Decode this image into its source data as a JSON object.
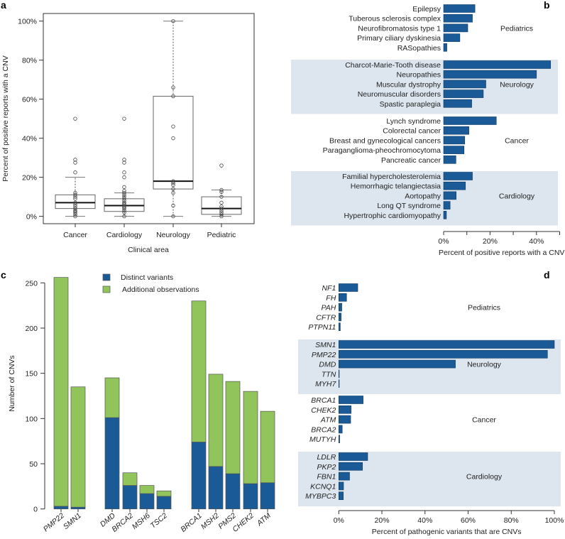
{
  "chart_data": [
    {
      "panel": "a",
      "type": "box",
      "xlabel": "Clinical area",
      "ylabel": "Percent of positive reports with a CNV",
      "ylim": [
        0,
        100
      ],
      "yticks": [
        "0%",
        "20%",
        "40%",
        "60%",
        "80%",
        "100%"
      ],
      "yticks_values": [
        0,
        20,
        40,
        60,
        80,
        100
      ],
      "categories": [
        "Cancer",
        "Cardiology",
        "Neurology",
        "Pediatric"
      ],
      "boxes": [
        {
          "q1": 4,
          "median": 7,
          "q3": 11,
          "whisker_low": 0,
          "whisker_high": 20,
          "points": [
            0,
            1,
            2,
            2.5,
            3,
            4,
            5,
            6,
            7,
            9,
            10,
            11,
            12,
            22.5,
            27.5,
            29,
            50
          ]
        },
        {
          "q1": 2.5,
          "median": 5.5,
          "q3": 9,
          "whisker_low": 0,
          "whisker_high": 12,
          "points": [
            0,
            2,
            3,
            4,
            4.5,
            5,
            6,
            6.5,
            7,
            8,
            9,
            10,
            11,
            12,
            13,
            15,
            20,
            22.5,
            27.5,
            29,
            50
          ]
        },
        {
          "q1": 14,
          "median": 18,
          "q3": 61.5,
          "whisker_low": 0,
          "whisker_high": 100,
          "points": [
            0,
            5.5,
            12,
            14,
            16,
            17,
            18,
            40,
            46,
            61.5,
            66,
            100
          ]
        },
        {
          "q1": 1,
          "median": 4,
          "q3": 10,
          "whisker_low": 0,
          "whisker_high": 13.5,
          "points": [
            0,
            1,
            2,
            3,
            4,
            5,
            7,
            10,
            12.5,
            13.5,
            26
          ]
        }
      ]
    },
    {
      "panel": "b",
      "type": "bar",
      "orientation": "horizontal",
      "xlabel": "Percent of positive reports with a CNV",
      "xlim": [
        0,
        50
      ],
      "xticks": [
        "0%",
        "20%",
        "40%"
      ],
      "xticks_values": [
        0,
        20,
        40
      ],
      "groups": [
        {
          "name": "Pediatrics",
          "shaded": false,
          "categories": [
            "Epilepsy",
            "Tuberous sclerosis complex",
            "Neurofibromatosis type 1",
            "Primary ciliary dyskinesia",
            "RASopathies"
          ],
          "values": [
            13.5,
            12.4,
            10.4,
            7.0,
            1.4
          ]
        },
        {
          "name": "Neurology",
          "shaded": true,
          "categories": [
            "Charcot-Marie-Tooth disease",
            "Neuropathies",
            "Muscular dystrophy",
            "Neuromuscular disorders",
            "Spastic paraplegia"
          ],
          "values": [
            46.1,
            40.0,
            18.2,
            17.1,
            12.1
          ]
        },
        {
          "name": "Cancer",
          "shaded": false,
          "categories": [
            "Lynch syndrome",
            "Colorectal cancer",
            "Breast and gynecological cancers",
            "Paraganglioma-pheochromocytoma",
            "Pancreatic cancer"
          ],
          "values": [
            22.7,
            10.9,
            9.1,
            8.8,
            5.3
          ]
        },
        {
          "name": "Cardiology",
          "shaded": true,
          "categories": [
            "Familial hypercholesterolemia",
            "Hemorrhagic telangiectasia",
            "Aortopathy",
            "Long QT syndrome",
            "Hypertrophic cardiomyopathy"
          ],
          "values": [
            12.4,
            9.4,
            5.4,
            2.8,
            1.2
          ]
        }
      ]
    },
    {
      "panel": "c",
      "type": "stacked-bar",
      "ylabel": "Number of CNVs",
      "ylim": [
        0,
        250
      ],
      "yticks": [
        "0",
        "50",
        "100",
        "150",
        "200",
        "250"
      ],
      "yticks_values": [
        0,
        50,
        100,
        150,
        200,
        250
      ],
      "legend_position": "top",
      "categories": [
        "PMP22",
        "SMN1",
        "DMD",
        "BRCA2",
        "MSH6",
        "TSC2",
        "BRCA1",
        "MSH2",
        "PMS2",
        "CHEK2",
        "ATM"
      ],
      "category_groups": [
        0,
        0,
        1,
        1,
        1,
        1,
        2,
        2,
        2,
        2,
        2
      ],
      "series": [
        {
          "name": "Distinct variants",
          "color": "#1a5a96",
          "values": [
            3,
            2,
            101,
            26,
            17,
            14,
            74,
            47,
            39,
            28,
            29
          ]
        },
        {
          "name": "Additional observations",
          "color": "#92c45c",
          "values": [
            253,
            133,
            44,
            14,
            9,
            6,
            156,
            102,
            102,
            102,
            79
          ]
        }
      ],
      "totals": [
        256,
        135,
        145,
        40,
        26,
        20,
        230,
        149,
        141,
        130,
        108
      ]
    },
    {
      "panel": "d",
      "type": "bar",
      "orientation": "horizontal",
      "xlabel": "Percent of pathogenic variants that are CNVs",
      "xlim": [
        0,
        100
      ],
      "xticks": [
        "0%",
        "20%",
        "40%",
        "60%",
        "80%",
        "100%"
      ],
      "xticks_values": [
        0,
        20,
        40,
        60,
        80,
        100
      ],
      "groups": [
        {
          "name": "Pediatrics",
          "shaded": false,
          "categories": [
            "NF1",
            "FH",
            "PAH",
            "CFTR",
            "PTPN11"
          ],
          "values": [
            8.8,
            3.6,
            1.4,
            1.1,
            0.7
          ]
        },
        {
          "name": "Neurology",
          "shaded": true,
          "categories": [
            "SMN1",
            "PMP22",
            "DMD",
            "TTN",
            "MYH7"
          ],
          "values": [
            100,
            96.8,
            54.1,
            0.2,
            0.2
          ]
        },
        {
          "name": "Cancer",
          "shaded": false,
          "categories": [
            "BRCA1",
            "CHEK2",
            "ATM",
            "BRCA2",
            "MUTYH"
          ],
          "values": [
            11.3,
            5.7,
            5.5,
            1.6,
            0.4
          ]
        },
        {
          "name": "Cardiology",
          "shaded": true,
          "categories": [
            "LDLR",
            "PKP2",
            "FBN1",
            "KCNQ1",
            "MYBPC3"
          ],
          "values": [
            13.4,
            11.0,
            5.0,
            2.2,
            2.1
          ]
        }
      ]
    }
  ],
  "colors": {
    "bar": "#1a5a96",
    "band": "#dde6ef",
    "green": "#92c45c"
  }
}
